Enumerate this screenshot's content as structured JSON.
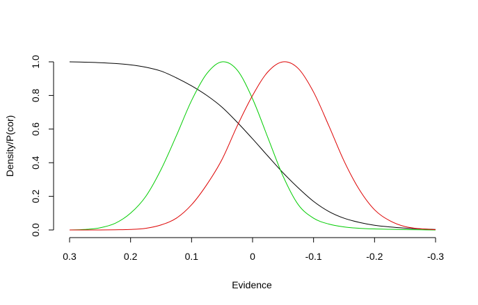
{
  "chart_data": {
    "type": "line",
    "title": "",
    "xlabel": "Evidence",
    "ylabel": "Density/P(cor)",
    "xlim": [
      0.3,
      -0.3
    ],
    "ylim": [
      0,
      1
    ],
    "x_reversed": true,
    "grid": false,
    "x_ticks": [
      0.3,
      0.2,
      0.1,
      0,
      -0.1,
      -0.2,
      -0.3
    ],
    "x_tick_labels": [
      "0.3",
      "0.2",
      "0.1",
      "0",
      "-0.1",
      "-0.2",
      "-0.3"
    ],
    "y_ticks": [
      0.0,
      0.2,
      0.4,
      0.6,
      0.8,
      1.0
    ],
    "y_tick_labels": [
      "0.0",
      "0.2",
      "0.4",
      "0.6",
      "0.8",
      "1.0"
    ],
    "x": [
      0.3,
      0.275,
      0.25,
      0.225,
      0.2,
      0.175,
      0.15,
      0.125,
      0.1,
      0.075,
      0.05,
      0.025,
      0,
      -0.025,
      -0.05,
      -0.075,
      -0.1,
      -0.125,
      -0.15,
      -0.175,
      -0.2,
      -0.225,
      -0.25,
      -0.275,
      -0.3
    ],
    "series": [
      {
        "color": "#000000",
        "values": [
          1.0,
          0.998,
          0.995,
          0.99,
          0.982,
          0.968,
          0.945,
          0.905,
          0.857,
          0.8,
          0.73,
          0.64,
          0.542,
          0.44,
          0.34,
          0.25,
          0.17,
          0.11,
          0.07,
          0.045,
          0.028,
          0.018,
          0.011,
          0.006,
          0.003
        ]
      },
      {
        "color": "#00cc00",
        "values": [
          0.0,
          0.003,
          0.013,
          0.04,
          0.1,
          0.2,
          0.36,
          0.56,
          0.77,
          0.93,
          1.0,
          0.95,
          0.78,
          0.55,
          0.32,
          0.15,
          0.07,
          0.035,
          0.018,
          0.01,
          0.006,
          0.004,
          0.002,
          0.001,
          0.0
        ]
      },
      {
        "color": "#dd0000",
        "values": [
          0.0,
          0.0,
          0.0,
          0.001,
          0.003,
          0.01,
          0.03,
          0.07,
          0.15,
          0.27,
          0.42,
          0.62,
          0.8,
          0.94,
          1.0,
          0.96,
          0.82,
          0.62,
          0.41,
          0.24,
          0.12,
          0.055,
          0.02,
          0.007,
          0.002
        ]
      }
    ]
  }
}
